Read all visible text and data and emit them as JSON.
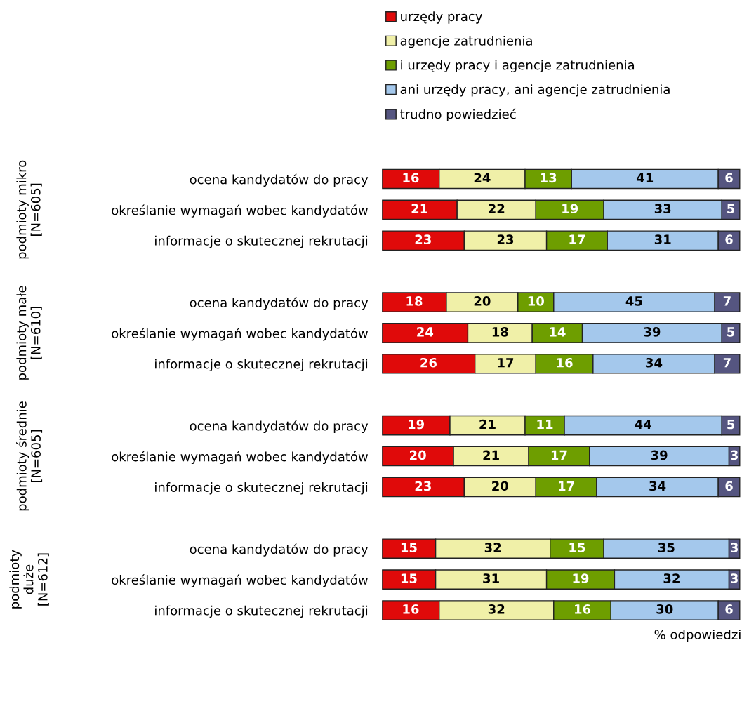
{
  "chart_data": {
    "type": "bar",
    "orientation": "horizontal",
    "stacked": true,
    "data_labels": true,
    "legend": "top",
    "grid": false,
    "xlabel": "% odpowiedzi",
    "categories": [
      "ocena kandydatów do pracy",
      "określanie wymagań wobec kandydatów",
      "informacje o skutecznej rekrutacji",
      null,
      "ocena kandydatów do pracy",
      "określanie wymagań wobec kandydatów",
      "informacje o skutecznej rekrutacji",
      null,
      "ocena kandydatów do pracy",
      "określanie wymagań wobec kandydatów",
      "informacje o skutecznej rekrutacji",
      null,
      "ocena kandydatów do pracy",
      "określanie wymagań wobec kandydatów",
      "informacje o skutecznej rekrutacji"
    ],
    "annotations": [
      "podmioty mikro\n[N=605]",
      "podmioty małe\n[N=610]",
      "podmioty średnie\n[N=605]",
      "podmioty\nduże\n[N=612]"
    ],
    "series": [
      {
        "name": "urzędy pracy",
        "color": "#e00a0a",
        "values": [
          16,
          21,
          23,
          null,
          18,
          24,
          26,
          null,
          19,
          20,
          23,
          null,
          15,
          15,
          16
        ]
      },
      {
        "name": "agencje zatrudnienia",
        "color": "#f0f0a8",
        "values": [
          24,
          22,
          23,
          null,
          20,
          18,
          17,
          null,
          21,
          21,
          20,
          null,
          32,
          31,
          32
        ]
      },
      {
        "name": "i urzędy pracy i agencje zatrudnienia",
        "color": "#6e9e00",
        "values": [
          13,
          19,
          17,
          null,
          10,
          14,
          16,
          null,
          11,
          17,
          17,
          null,
          15,
          19,
          16
        ]
      },
      {
        "name": "ani urzędy pracy, ani agencje zatrudnienia",
        "color": "#a4c8ec",
        "values": [
          41,
          33,
          31,
          null,
          45,
          39,
          34,
          null,
          44,
          39,
          34,
          null,
          35,
          32,
          30
        ]
      },
      {
        "name": "trudno powiedzieć",
        "color": "#555580",
        "values": [
          6,
          5,
          6,
          null,
          7,
          5,
          7,
          null,
          5,
          3,
          6,
          null,
          3,
          3,
          6
        ]
      }
    ]
  }
}
